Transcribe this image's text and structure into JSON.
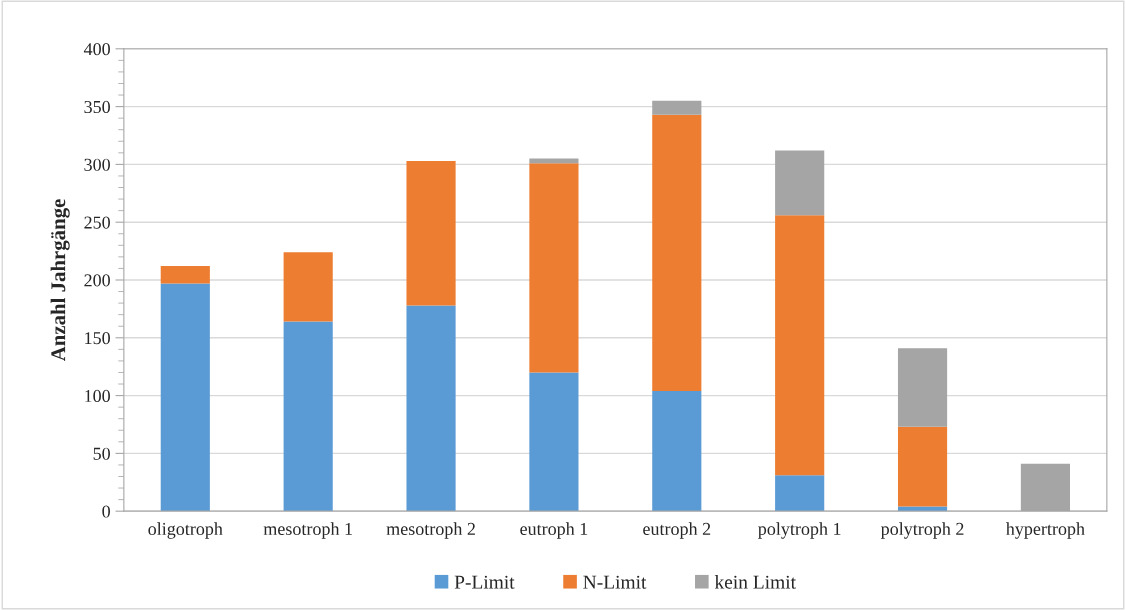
{
  "chart_data": {
    "type": "bar",
    "stacked": true,
    "ylabel": "Anzahl Jahrgänge",
    "categories": [
      "oligotroph",
      "mesotroph 1",
      "mesotroph 2",
      "eutroph 1",
      "eutroph 2",
      "polytroph 1",
      "polytroph 2",
      "hypertroph"
    ],
    "series": [
      {
        "name": "P-Limit",
        "color": "#5b9bd5",
        "values": [
          197,
          164,
          178,
          120,
          104,
          31,
          4,
          0
        ]
      },
      {
        "name": "N-Limit",
        "color": "#ed7d31",
        "values": [
          15,
          60,
          125,
          181,
          239,
          225,
          69,
          0
        ]
      },
      {
        "name": "kein Limit",
        "color": "#a5a5a5",
        "values": [
          0,
          0,
          0,
          4,
          12,
          56,
          68,
          41
        ]
      }
    ],
    "ylim": [
      0,
      400
    ],
    "yticks": [
      0,
      50,
      100,
      150,
      200,
      250,
      300,
      350,
      400
    ],
    "grid": "y",
    "legend": "bottom"
  }
}
